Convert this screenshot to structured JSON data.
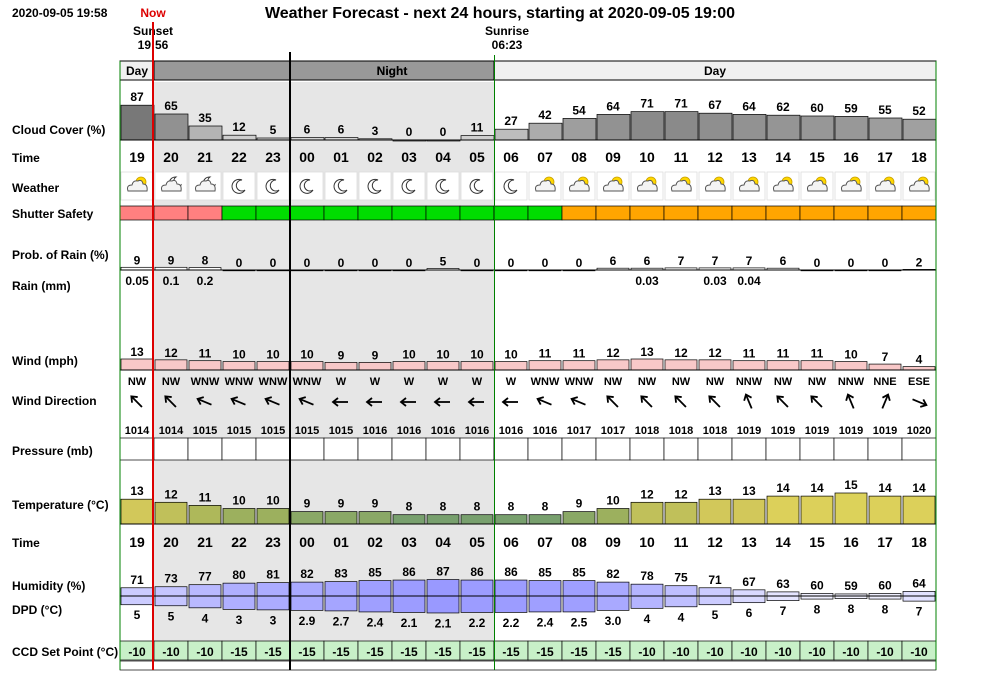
{
  "header": {
    "timestamp": "2020-09-05 19:58",
    "now_label": "Now",
    "title": "Weather Forecast - next 24 hours, starting at 2020-09-05 19:00",
    "sunset_label": "Sunset",
    "sunset_time": "19:56",
    "sunrise_label": "Sunrise",
    "sunrise_time": "06:23"
  },
  "periods": [
    {
      "label": "Day",
      "start": 0,
      "end": 1
    },
    {
      "label": "Night",
      "start": 5,
      "end": 11
    },
    {
      "label": "Day",
      "start": 11,
      "end": 24
    }
  ],
  "row_labels": {
    "cloud": "Cloud Cover (%)",
    "time": "Time",
    "weather": "Weather",
    "shutter": "Shutter Safety",
    "rain_prob": "Prob. of Rain (%)",
    "rain": "Rain (mm)",
    "wind": "Wind (mph)",
    "wind_dir": "Wind Direction",
    "pressure": "Pressure (mb)",
    "temperature": "Temperature (°C)",
    "time2": "Time",
    "humidity": "Humidity (%)",
    "dpd": "DPD (°C)",
    "ccd": "CCD Set Point (°C)"
  },
  "colors": {
    "shutter_red": "#FF8080",
    "shutter_green": "#00DD00",
    "shutter_orange": "#FFA500",
    "night_shade": "#E6E6E6",
    "day_header": "#F0F0F0",
    "night_header": "#999999",
    "ccd_fill": "#C8F0C8",
    "now_line": "#DD0000",
    "sunrise_line": "#008000",
    "wind_fill": "#F8C8C8"
  },
  "chart_data": {
    "type": "table",
    "hours": [
      "19",
      "20",
      "21",
      "22",
      "23",
      "00",
      "01",
      "02",
      "03",
      "04",
      "05",
      "06",
      "07",
      "08",
      "09",
      "10",
      "11",
      "12",
      "13",
      "14",
      "15",
      "16",
      "17",
      "18"
    ],
    "cloud_cover": [
      87,
      65,
      35,
      12,
      5,
      6,
      6,
      3,
      0,
      0,
      11,
      27,
      42,
      54,
      64,
      71,
      71,
      67,
      64,
      62,
      60,
      59,
      55,
      52
    ],
    "weather_icons": [
      "partly-cloudy-sun-icon",
      "partly-cloudy-moon-icon",
      "partly-cloudy-moon-icon",
      "moon-icon",
      "moon-icon",
      "moon-icon",
      "moon-icon",
      "moon-icon",
      "moon-icon",
      "moon-icon",
      "moon-icon",
      "moon-icon",
      "partly-cloudy-sun-icon",
      "partly-cloudy-sun-icon",
      "partly-cloudy-sun-icon",
      "partly-cloudy-sun-icon",
      "partly-cloudy-sun-icon",
      "partly-cloudy-sun-icon",
      "partly-cloudy-sun-icon",
      "partly-cloudy-sun-icon",
      "partly-cloudy-sun-icon",
      "partly-cloudy-sun-icon",
      "partly-cloudy-sun-icon",
      "partly-cloudy-sun-icon"
    ],
    "shutter_safety": [
      "red",
      "red",
      "red",
      "green",
      "green",
      "green",
      "green",
      "green",
      "green",
      "green",
      "green",
      "green",
      "green",
      "orange",
      "orange",
      "orange",
      "orange",
      "orange",
      "orange",
      "orange",
      "orange",
      "orange",
      "orange",
      "orange"
    ],
    "rain_probability": [
      9,
      9,
      8,
      0,
      0,
      0,
      0,
      0,
      0,
      5,
      0,
      0,
      0,
      0,
      6,
      6,
      7,
      7,
      7,
      6,
      0,
      0,
      0,
      2
    ],
    "rain_mm": [
      "0.05",
      "0.1",
      "0.2",
      "",
      "",
      "",
      "",
      "",
      "",
      "",
      "",
      "",
      "",
      "",
      "",
      "0.03",
      "",
      "0.03",
      "0.04",
      "",
      "",
      "",
      "",
      ""
    ],
    "wind_speed": [
      13,
      12,
      11,
      10,
      10,
      10,
      9,
      9,
      10,
      10,
      10,
      10,
      11,
      11,
      12,
      13,
      12,
      12,
      11,
      11,
      11,
      10,
      7,
      4
    ],
    "wind_direction": [
      "NW",
      "NW",
      "WNW",
      "WNW",
      "WNW",
      "WNW",
      "W",
      "W",
      "W",
      "W",
      "W",
      "W",
      "WNW",
      "WNW",
      "NW",
      "NW",
      "NW",
      "NW",
      "NNW",
      "NW",
      "NW",
      "NNW",
      "NNE",
      "ESE"
    ],
    "wind_arrow_angle": [
      135,
      135,
      112.5,
      112.5,
      112.5,
      112.5,
      90,
      90,
      90,
      90,
      90,
      90,
      112.5,
      112.5,
      135,
      135,
      135,
      135,
      157.5,
      135,
      135,
      157.5,
      202.5,
      292.5
    ],
    "pressure": [
      1014,
      1014,
      1015,
      1015,
      1015,
      1015,
      1015,
      1016,
      1016,
      1016,
      1016,
      1016,
      1016,
      1017,
      1017,
      1018,
      1018,
      1018,
      1019,
      1019,
      1019,
      1019,
      1019,
      1020
    ],
    "temperature": [
      13,
      12,
      11,
      10,
      10,
      9,
      9,
      9,
      8,
      8,
      8,
      8,
      8,
      9,
      10,
      12,
      12,
      13,
      13,
      14,
      14,
      15,
      14,
      14
    ],
    "humidity": [
      71,
      73,
      77,
      80,
      81,
      82,
      83,
      85,
      86,
      87,
      86,
      86,
      85,
      85,
      82,
      78,
      75,
      71,
      67,
      63,
      60,
      59,
      60,
      64
    ],
    "dpd": [
      "5",
      "5",
      "4",
      "3",
      "3",
      "2.9",
      "2.7",
      "2.4",
      "2.1",
      "2.1",
      "2.2",
      "2.2",
      "2.4",
      "2.5",
      "3.0",
      "4",
      "4",
      "5",
      "6",
      "7",
      "8",
      "8",
      "8",
      "7"
    ],
    "ccd_set_point": [
      -10,
      -10,
      -10,
      -15,
      -15,
      -15,
      -15,
      -15,
      -15,
      -15,
      -15,
      -15,
      -15,
      -15,
      -15,
      -10,
      -10,
      -10,
      -10,
      -10,
      -10,
      -10,
      -10,
      -10
    ]
  }
}
